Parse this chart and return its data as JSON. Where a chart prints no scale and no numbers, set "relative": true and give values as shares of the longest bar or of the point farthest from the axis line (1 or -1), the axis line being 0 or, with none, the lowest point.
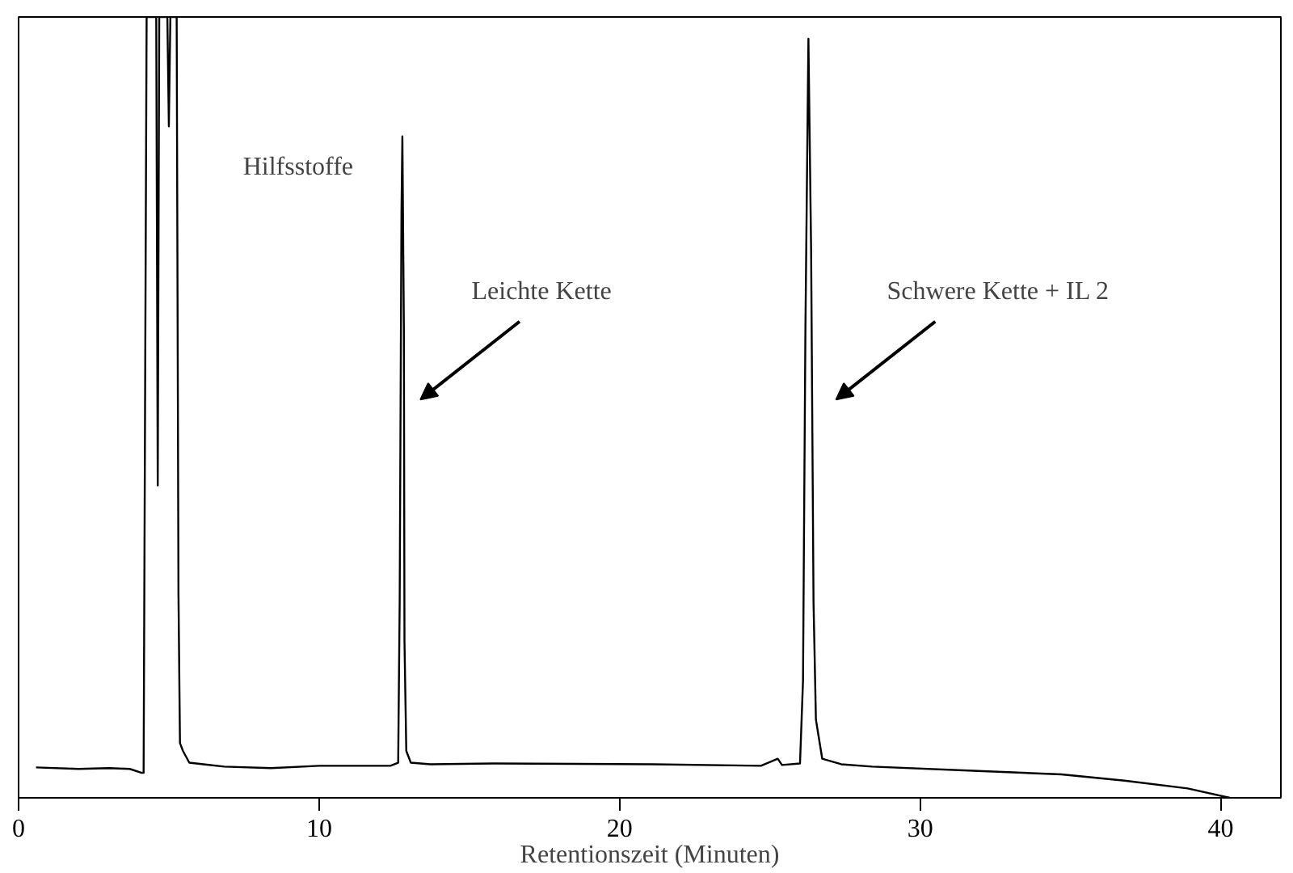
{
  "chart_data": {
    "type": "line",
    "relative": true,
    "xlabel": "Retentionszeit (Minuten)",
    "xlim": [
      0,
      42
    ],
    "xticks": [
      0,
      10,
      20,
      30,
      40
    ],
    "grid": false,
    "tick_labels": "x",
    "series": [
      {
        "color": "#000000",
        "x": [
          0.58,
          2.0,
          3.0,
          3.7,
          4.1,
          4.16,
          4.26,
          4.58,
          4.63,
          4.68,
          4.95,
          5.0,
          5.05,
          5.26,
          5.32,
          5.37,
          5.47,
          5.68,
          6.84,
          8.4,
          10.0,
          12.37,
          12.63,
          12.68,
          12.74,
          12.77,
          12.82,
          12.84,
          12.9,
          13.05,
          13.7,
          15.8,
          21.1,
          24.7,
          25.26,
          25.4,
          26.0,
          26.1,
          26.18,
          26.28,
          26.37,
          26.45,
          26.53,
          26.74,
          27.37,
          28.4,
          31.6,
          34.7,
          36.8,
          38.9,
          40.3
        ],
        "values": [
          0.039,
          0.037,
          0.038,
          0.037,
          0.032,
          0.032,
          1,
          1,
          0.4,
          1,
          1,
          0.86,
          1,
          1,
          0.26,
          0.07,
          0.06,
          0.045,
          0.04,
          0.038,
          0.041,
          0.041,
          0.045,
          0.25,
          0.75,
          0.847,
          0.6,
          0.2,
          0.06,
          0.045,
          0.043,
          0.044,
          0.043,
          0.041,
          0.05,
          0.042,
          0.044,
          0.15,
          0.6,
          0.972,
          0.7,
          0.25,
          0.1,
          0.05,
          0.043,
          0.04,
          0.035,
          0.03,
          0.022,
          0.012,
          0.0
        ]
      }
    ],
    "annotations": [
      "Hilfsstoffe",
      "Leichte Kette",
      "Schwere Kette + IL 2"
    ]
  }
}
